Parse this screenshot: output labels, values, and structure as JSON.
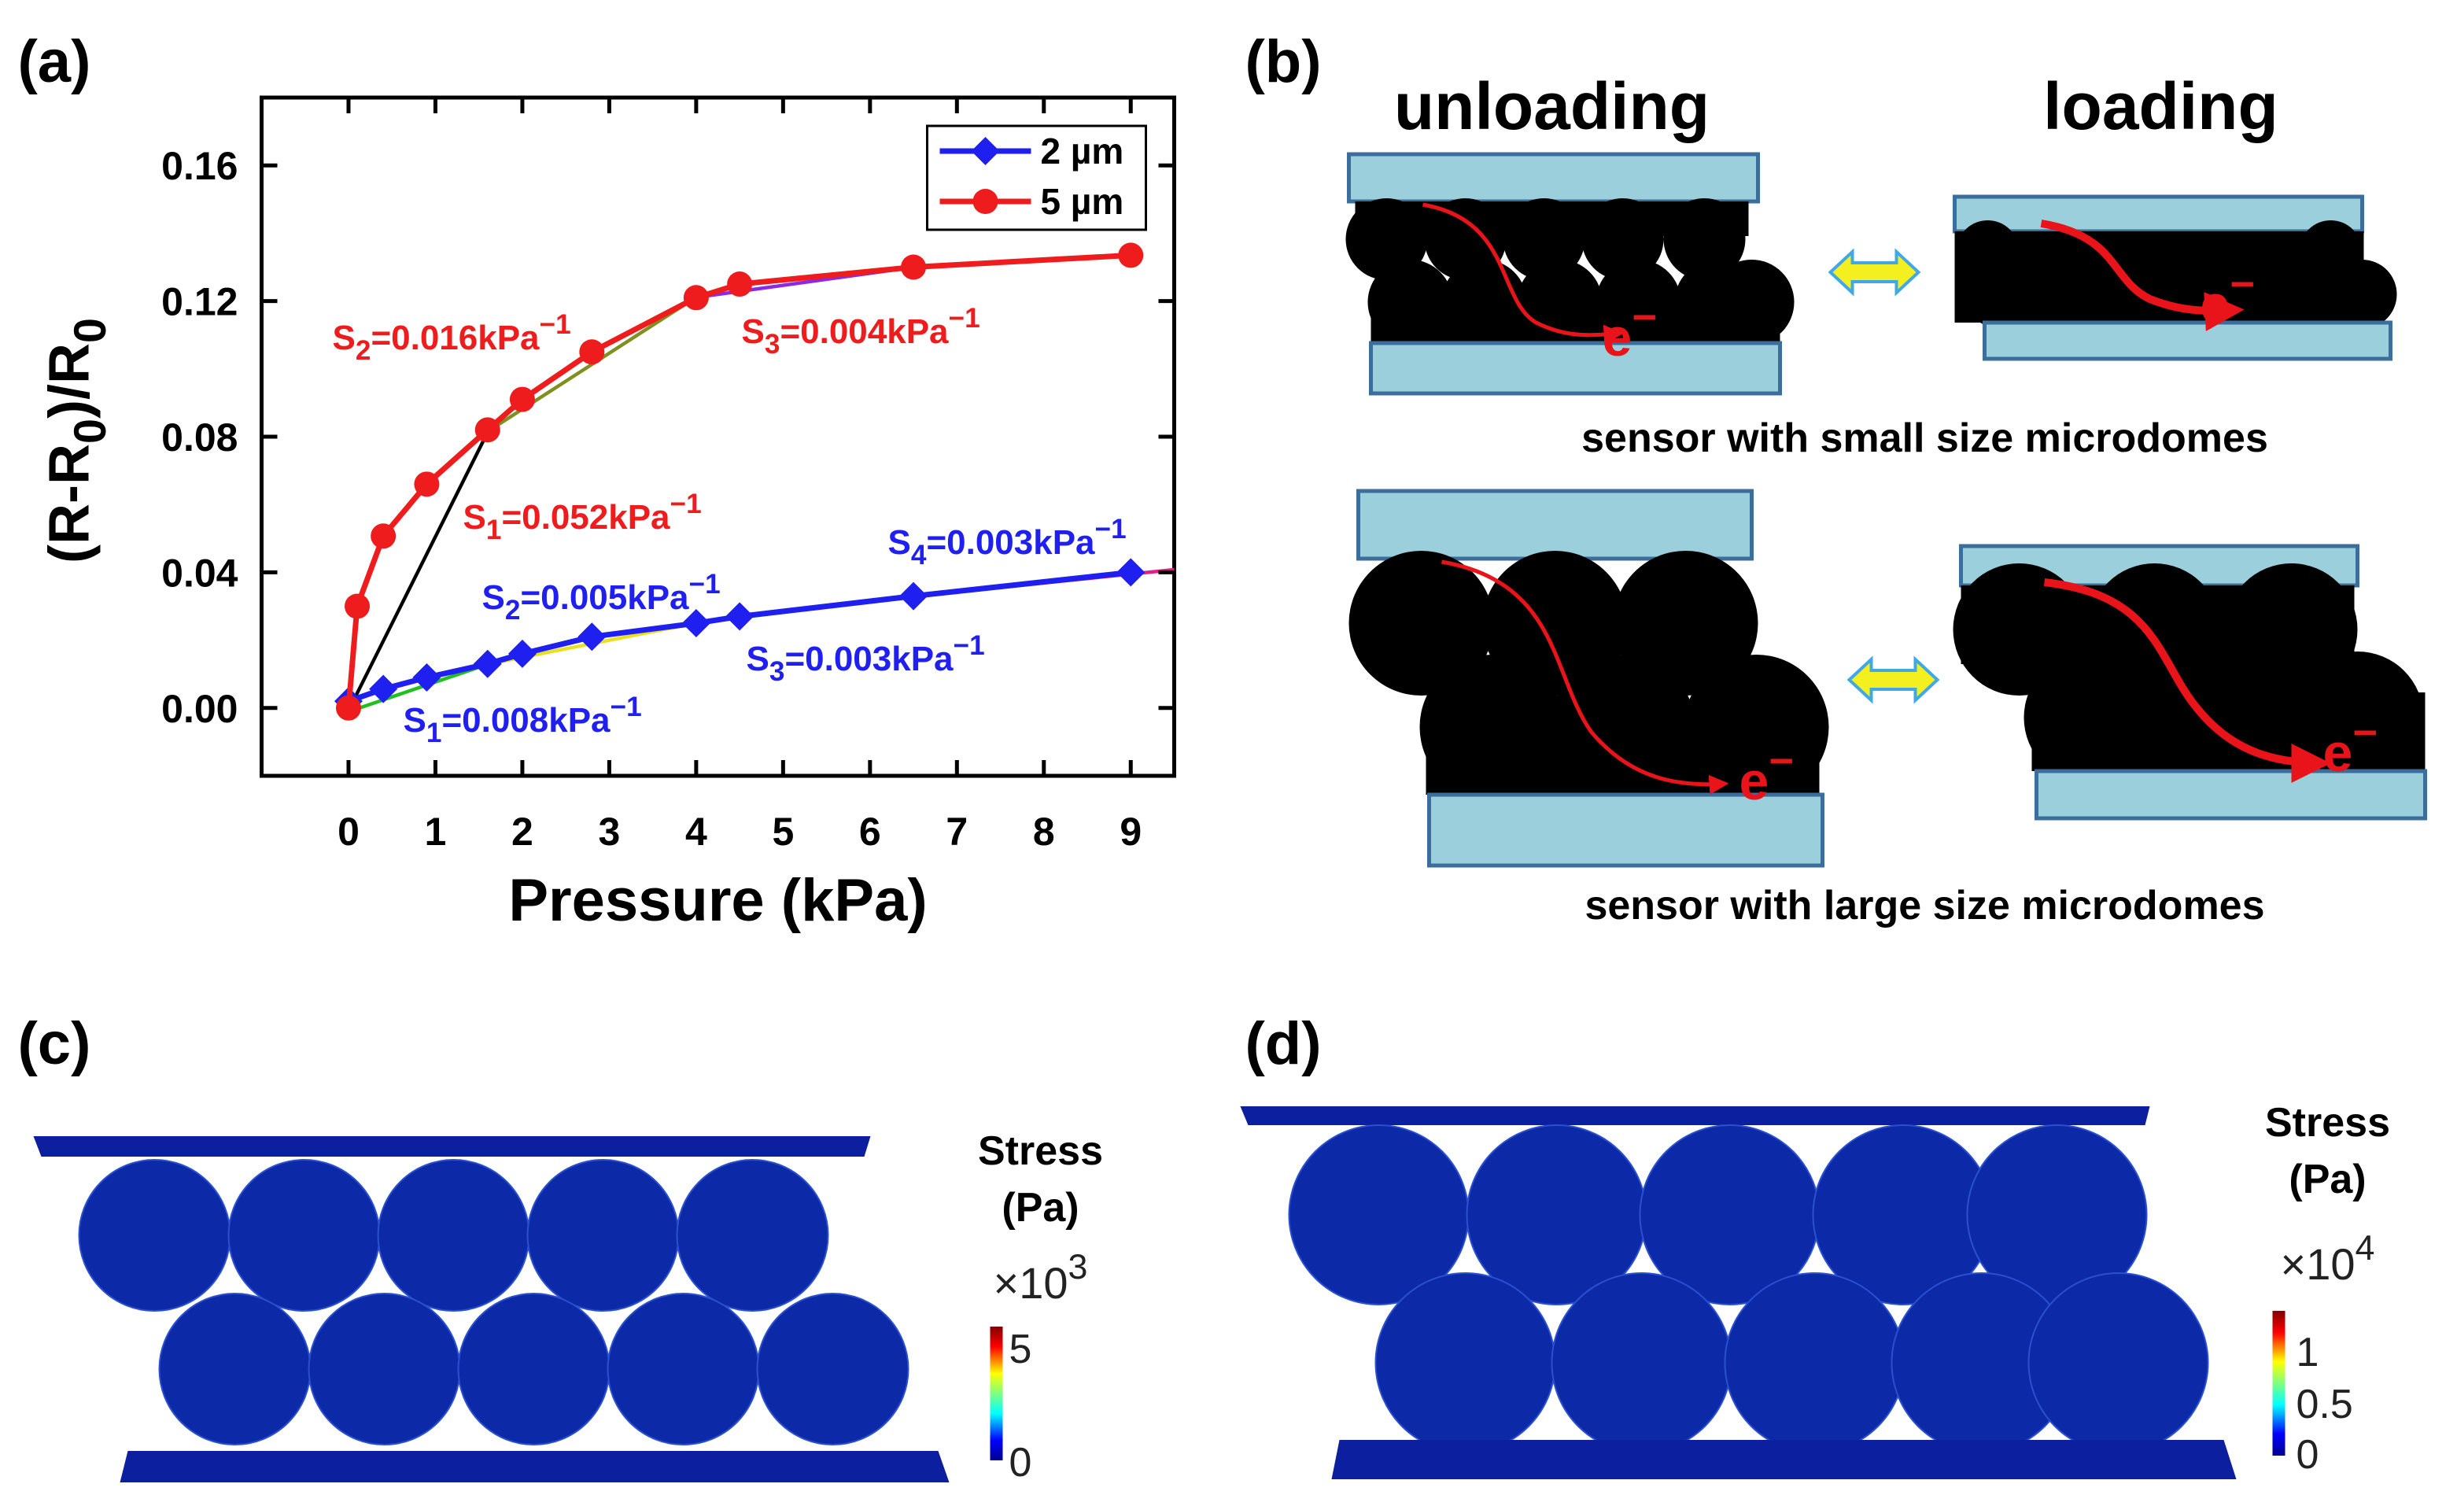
{
  "chart_data": {
    "type": "line",
    "panel_label": "(a)",
    "xlabel": "Pressure (kPa)",
    "ylabel": [
      "(R-R",
      "0",
      ")/R",
      "0"
    ],
    "xlim": [
      -1,
      9.5
    ],
    "xticks": [
      0,
      1,
      2,
      3,
      4,
      5,
      6,
      7,
      8,
      9
    ],
    "ylim": [
      -0.02,
      0.18
    ],
    "yticks": [
      {
        "value": 0,
        "label": "0.00"
      },
      {
        "value": 0.04,
        "label": "0.04"
      },
      {
        "value": 0.08,
        "label": "0.08"
      },
      {
        "value": 0.12,
        "label": "0.12"
      },
      {
        "value": 0.16,
        "label": "0.16"
      }
    ],
    "legend": "upper right",
    "series": [
      {
        "name": "2 µm",
        "color": "#1f1fef",
        "marker": "diamond",
        "x": [
          0,
          0.4,
          0.9,
          1.6,
          2.0,
          2.8,
          4.0,
          4.5,
          6.5,
          9.0
        ],
        "values": [
          0.002,
          0.0056,
          0.009,
          0.013,
          0.016,
          0.021,
          0.025,
          0.027,
          0.033,
          0.04
        ]
      },
      {
        "name": "5 µm",
        "color": "#ee1c1c",
        "marker": "circle",
        "x": [
          0,
          0.1,
          0.4,
          0.9,
          1.6,
          2.0,
          2.8,
          4.0,
          4.5,
          6.5,
          9.0
        ],
        "values": [
          0,
          0.03,
          0.0507,
          0.066,
          0.082,
          0.091,
          0.105,
          0.121,
          0.125,
          0.13,
          0.1335
        ]
      }
    ],
    "annotations": [
      {
        "symbol": "S",
        "sub": "2",
        "text": "=0.016kPa",
        "sup": "−1",
        "color": "#ee1c1c"
      },
      {
        "symbol": "S",
        "sub": "3",
        "text": "=0.004kPa",
        "sup": "−1",
        "color": "#ee1c1c"
      },
      {
        "symbol": "S",
        "sub": "1",
        "text": "=0.052kPa",
        "sup": "−1",
        "color": "#ee1c1c"
      },
      {
        "symbol": "S",
        "sub": "2",
        "text": "=0.005kPa",
        "sup": "−1",
        "color": "#1f1fef"
      },
      {
        "symbol": "S",
        "sub": "4",
        "text": "=0.003kPa",
        "sup": "−1",
        "color": "#1f1fef"
      },
      {
        "symbol": "S",
        "sub": "3",
        "text": "=0.003kPa",
        "sup": "−1",
        "color": "#1f1fef"
      },
      {
        "symbol": "S",
        "sub": "1",
        "text": "=0.008kPa",
        "sup": "−1",
        "color": "#1f1fef"
      }
    ]
  },
  "panel_b": {
    "panel_label": "(b)",
    "unloading": "unloading",
    "loading": "loading",
    "electron": {
      "base": "e",
      "sup": "−"
    },
    "caption_small": "sensor with small size microdomes",
    "caption_large": "sensor with large size microdomes"
  },
  "panel_c": {
    "panel_label": "(c)",
    "title": "Stress",
    "unit": "(Pa)",
    "scale": {
      "base": "×10",
      "sup": "3"
    },
    "ticks": [
      "5",
      "0"
    ]
  },
  "panel_d": {
    "panel_label": "(d)",
    "title": "Stress",
    "unit": "(Pa)",
    "scale": {
      "base": "×10",
      "sup": "4"
    },
    "ticks": [
      "1",
      "0.5",
      "0"
    ]
  }
}
